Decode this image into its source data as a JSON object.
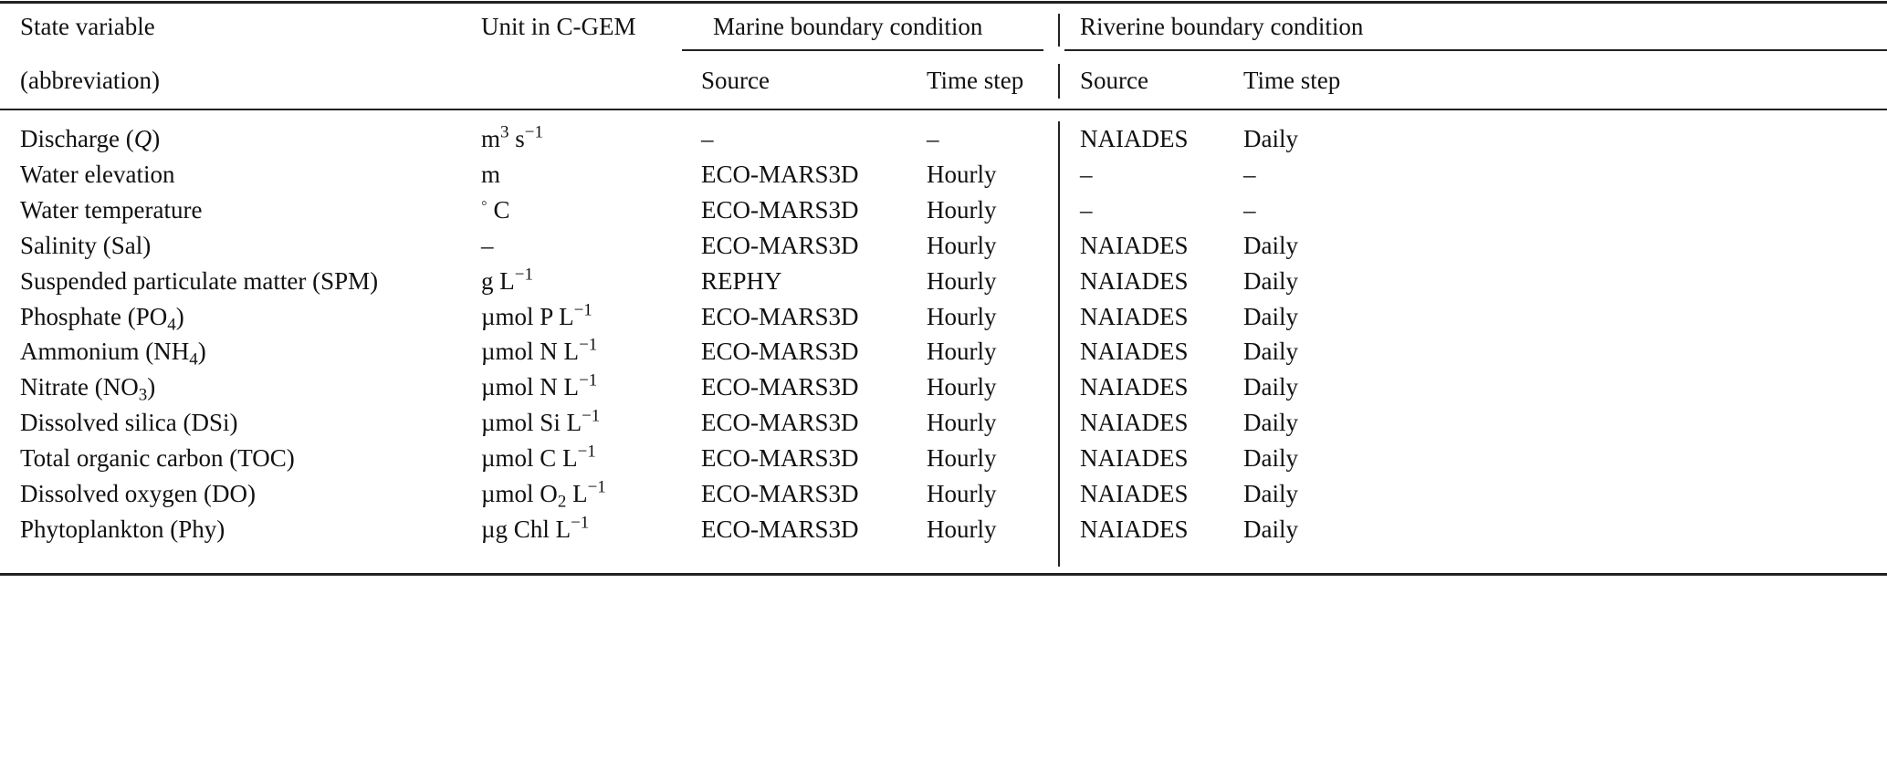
{
  "header": {
    "state_variable": "State variable",
    "abbreviation": "(abbreviation)",
    "unit": "Unit in C-GEM",
    "marine": "Marine boundary condition",
    "riverine": "Riverine boundary condition",
    "marine_source": "Source",
    "marine_timestep": "Time step",
    "riverine_source": "Source",
    "riverine_timestep": "Time step"
  },
  "rows": [
    {
      "variable": [
        {
          "t": "Discharge ("
        },
        {
          "i": "Q"
        },
        {
          "t": ")"
        }
      ],
      "unit": [
        {
          "t": "m"
        },
        {
          "sup": "3"
        },
        {
          "t": " s"
        },
        {
          "sup": "−1"
        }
      ],
      "marine_source": "–",
      "marine_timestep": "–",
      "riverine_source": "NAIADES",
      "riverine_timestep": "Daily"
    },
    {
      "variable": [
        {
          "t": "Water elevation"
        }
      ],
      "unit": [
        {
          "t": "m"
        }
      ],
      "marine_source": "ECO-MARS3D",
      "marine_timestep": "Hourly",
      "riverine_source": "–",
      "riverine_timestep": "–"
    },
    {
      "variable": [
        {
          "t": "Water temperature"
        }
      ],
      "unit": [
        {
          "sup": "◦"
        },
        {
          "t": " C"
        }
      ],
      "marine_source": "ECO-MARS3D",
      "marine_timestep": "Hourly",
      "riverine_source": "–",
      "riverine_timestep": "–"
    },
    {
      "variable": [
        {
          "t": "Salinity (Sal)"
        }
      ],
      "unit": [
        {
          "t": "–"
        }
      ],
      "marine_source": "ECO-MARS3D",
      "marine_timestep": "Hourly",
      "riverine_source": "NAIADES",
      "riverine_timestep": "Daily"
    },
    {
      "variable": [
        {
          "t": "Suspended particulate matter (SPM)"
        }
      ],
      "unit": [
        {
          "t": "g L"
        },
        {
          "sup": "−1"
        }
      ],
      "marine_source": "REPHY",
      "marine_timestep": "Hourly",
      "riverine_source": "NAIADES",
      "riverine_timestep": "Daily"
    },
    {
      "variable": [
        {
          "t": "Phosphate (PO"
        },
        {
          "sub": "4"
        },
        {
          "t": ")"
        }
      ],
      "unit": [
        {
          "t": "µmol P L"
        },
        {
          "sup": "−1"
        }
      ],
      "marine_source": "ECO-MARS3D",
      "marine_timestep": "Hourly",
      "riverine_source": "NAIADES",
      "riverine_timestep": "Daily"
    },
    {
      "variable": [
        {
          "t": "Ammonium (NH"
        },
        {
          "sub": "4"
        },
        {
          "t": ")"
        }
      ],
      "unit": [
        {
          "t": "µmol N L"
        },
        {
          "sup": "−1"
        }
      ],
      "marine_source": "ECO-MARS3D",
      "marine_timestep": "Hourly",
      "riverine_source": "NAIADES",
      "riverine_timestep": "Daily"
    },
    {
      "variable": [
        {
          "t": "Nitrate (NO"
        },
        {
          "sub": "3"
        },
        {
          "t": ")"
        }
      ],
      "unit": [
        {
          "t": "µmol N L"
        },
        {
          "sup": "−1"
        }
      ],
      "marine_source": "ECO-MARS3D",
      "marine_timestep": "Hourly",
      "riverine_source": "NAIADES",
      "riverine_timestep": "Daily"
    },
    {
      "variable": [
        {
          "t": "Dissolved silica (DSi)"
        }
      ],
      "unit": [
        {
          "t": "µmol Si L"
        },
        {
          "sup": "−1"
        }
      ],
      "marine_source": "ECO-MARS3D",
      "marine_timestep": "Hourly",
      "riverine_source": "NAIADES",
      "riverine_timestep": "Daily"
    },
    {
      "variable": [
        {
          "t": "Total organic carbon (TOC)"
        }
      ],
      "unit": [
        {
          "t": "µmol C L"
        },
        {
          "sup": "−1"
        }
      ],
      "marine_source": "ECO-MARS3D",
      "marine_timestep": "Hourly",
      "riverine_source": "NAIADES",
      "riverine_timestep": "Daily"
    },
    {
      "variable": [
        {
          "t": "Dissolved oxygen (DO)"
        }
      ],
      "unit": [
        {
          "t": "µmol O"
        },
        {
          "sub": "2"
        },
        {
          "t": " L"
        },
        {
          "sup": "−1"
        }
      ],
      "marine_source": "ECO-MARS3D",
      "marine_timestep": "Hourly",
      "riverine_source": "NAIADES",
      "riverine_timestep": "Daily"
    },
    {
      "variable": [
        {
          "t": "Phytoplankton (Phy)"
        }
      ],
      "unit": [
        {
          "t": "µg Chl L"
        },
        {
          "sup": "−1"
        }
      ],
      "marine_source": "ECO-MARS3D",
      "marine_timestep": "Hourly",
      "riverine_source": "NAIADES",
      "riverine_timestep": "Daily"
    }
  ]
}
